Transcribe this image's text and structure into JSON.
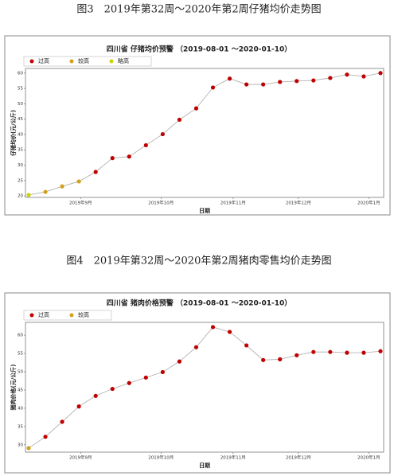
{
  "chart_data": [
    {
      "type": "line",
      "caption": "图3　2019年第32周～2020年第2周仔猪均价走势图",
      "title": "四川省 仔猪均价预警 （2019-08-01 ～2020-01-10）",
      "y_label": "仔猪均价(元/公斤)",
      "x_label": "日期",
      "legend": [
        {
          "name": "过高",
          "color": "#c00000"
        },
        {
          "name": "较高",
          "color": "#d4a017"
        },
        {
          "name": "略高",
          "color": "#c8d400"
        }
      ],
      "categories": [
        null,
        null,
        null,
        null,
        null,
        null,
        null,
        null,
        null,
        null,
        null,
        null,
        null,
        null,
        null,
        null,
        null,
        null,
        null,
        null,
        null,
        null
      ],
      "values": [
        20.3,
        21.3,
        23.1,
        24.7,
        27.8,
        32.3,
        32.8,
        36.5,
        40.1,
        44.8,
        48.5,
        55.3,
        58.2,
        56.3,
        56.3,
        57.1,
        57.4,
        57.6,
        58.4,
        59.5,
        58.9,
        60
      ],
      "point_colors": [
        "#c8d400",
        "#d4a017",
        "#d4a017",
        "#d4a017",
        "#c00000",
        "#c00000",
        "#c00000",
        "#c00000",
        "#c00000",
        "#c00000",
        "#c00000",
        "#c00000",
        "#c00000",
        "#c00000",
        "#c00000",
        "#c00000",
        "#c00000",
        "#c00000",
        "#c00000",
        "#c00000",
        "#c00000",
        "#c00000"
      ],
      "line_color": "#aaaaaa",
      "ylim": [
        19.5,
        61.5
      ],
      "yticks": [
        20,
        25,
        30,
        35,
        40,
        45,
        50,
        55,
        60
      ],
      "xticks": [
        {
          "value": 3.1,
          "label": "2019年9月"
        },
        {
          "value": 7.9,
          "label": "2019年10月"
        },
        {
          "value": 12.2,
          "label": "2019年11月"
        },
        {
          "value": 16.1,
          "label": "2019年12月"
        },
        {
          "value": 20.3,
          "label": "2020年1月"
        }
      ]
    },
    {
      "type": "line",
      "caption": "图4　2019年第32周～2020年第2周猪肉零售均价走势图",
      "title": "四川省 猪肉价格预警 （2019-08-01 ～2020-01-10）",
      "y_label": "猪肉价格(元/公斤)",
      "x_label": "日期",
      "legend": [
        {
          "name": "过高",
          "color": "#c00000"
        },
        {
          "name": "较高",
          "color": "#d4a017"
        }
      ],
      "categories": [
        null,
        null,
        null,
        null,
        null,
        null,
        null,
        null,
        null,
        null,
        null,
        null,
        null,
        null,
        null,
        null,
        null,
        null,
        null,
        null,
        null,
        null
      ],
      "values": [
        29.1,
        32.2,
        36.3,
        40.5,
        43.4,
        45.3,
        46.9,
        48.4,
        49.9,
        52.8,
        56.7,
        62.2,
        60.9,
        57.2,
        53.2,
        53.4,
        54.5,
        55.4,
        55.4,
        55.2,
        55.2,
        55.6
      ],
      "point_colors": [
        "#d4a017",
        "#c00000",
        "#c00000",
        "#c00000",
        "#c00000",
        "#c00000",
        "#c00000",
        "#c00000",
        "#c00000",
        "#c00000",
        "#c00000",
        "#c00000",
        "#c00000",
        "#c00000",
        "#c00000",
        "#c00000",
        "#c00000",
        "#c00000",
        "#c00000",
        "#c00000",
        "#c00000",
        "#c00000"
      ],
      "line_color": "#aaaaaa",
      "ylim": [
        28,
        63.5
      ],
      "yticks": [
        30,
        35,
        40,
        45,
        50,
        55,
        60
      ],
      "xticks": [
        {
          "value": 3.1,
          "label": "2019年9月"
        },
        {
          "value": 7.9,
          "label": "2019年10月"
        },
        {
          "value": 12.2,
          "label": "2019年11月"
        },
        {
          "value": 16.1,
          "label": "2019年12月"
        },
        {
          "value": 20.3,
          "label": "2020年1月"
        }
      ]
    }
  ]
}
